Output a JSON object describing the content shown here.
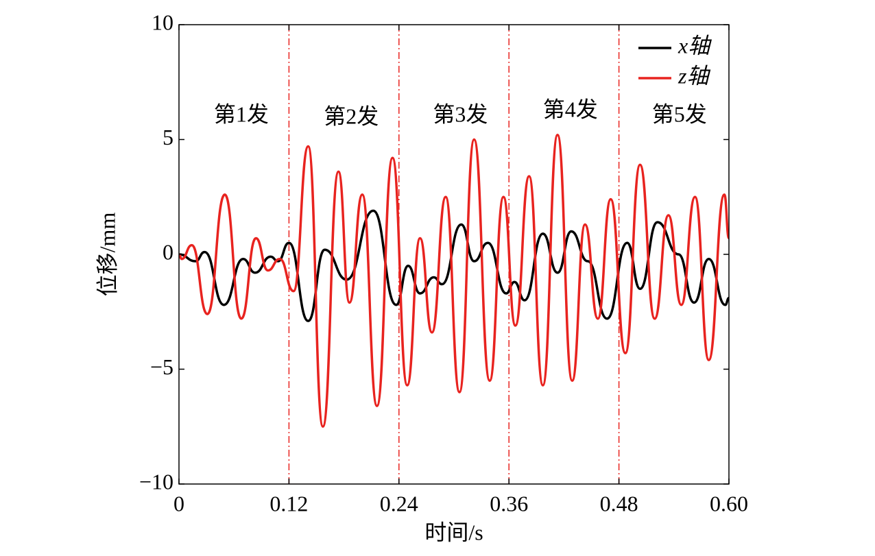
{
  "chart_data": {
    "type": "line",
    "xlabel": "时间/s",
    "ylabel": "位移/mm",
    "xlim": [
      0,
      0.6
    ],
    "ylim": [
      -10,
      10
    ],
    "xticks": [
      0,
      0.12,
      0.24,
      0.36,
      0.48,
      {
        "value": 0.6,
        "label": "0.60"
      }
    ],
    "yticks": [
      {
        "value": -10,
        "label": "−10"
      },
      {
        "value": -5,
        "label": "−5"
      },
      0,
      5,
      10
    ],
    "legend": "upper right",
    "vlines": [
      0.12,
      0.24,
      0.36,
      0.48
    ],
    "vline_color": "#e8231f",
    "annotations": [
      {
        "text": "第1发",
        "x": 0.068,
        "y": 6.0
      },
      {
        "text": "第2发",
        "x": 0.188,
        "y": 5.9
      },
      {
        "text": "第3发",
        "x": 0.307,
        "y": 6.0
      },
      {
        "text": "第4发",
        "x": 0.427,
        "y": 6.2
      },
      {
        "text": "第5发",
        "x": 0.546,
        "y": 6.0
      }
    ],
    "series": [
      {
        "name": "x轴",
        "color": "#000000",
        "x": [
          0,
          0.018,
          0.028,
          0.049,
          0.07,
          0.083,
          0.1,
          0.108,
          0.12,
          0.141,
          0.159,
          0.183,
          0.212,
          0.237,
          0.25,
          0.263,
          0.278,
          0.287,
          0.308,
          0.322,
          0.337,
          0.357,
          0.366,
          0.377,
          0.397,
          0.413,
          0.428,
          0.446,
          0.467,
          0.489,
          0.503,
          0.522,
          0.545,
          0.562,
          0.578,
          0.596,
          0.6
        ],
        "values": [
          0,
          -0.3,
          0.1,
          -2.2,
          -0.2,
          -0.8,
          -0.1,
          -0.3,
          0.5,
          -2.9,
          0.2,
          -1.1,
          1.9,
          -2.2,
          -0.5,
          -1.7,
          -1.0,
          -1.3,
          1.3,
          -0.3,
          0.5,
          -1.7,
          -1.2,
          -2.0,
          0.9,
          -0.8,
          1.0,
          -0.3,
          -2.8,
          0.5,
          -1.5,
          1.4,
          0.0,
          -2.1,
          -0.2,
          -2.2,
          -1.9
        ]
      },
      {
        "name": "z轴",
        "color": "#e8231f",
        "x": [
          0,
          0.003,
          0.014,
          0.031,
          0.05,
          0.068,
          0.084,
          0.097,
          0.11,
          0.125,
          0.141,
          0.157,
          0.174,
          0.186,
          0.2,
          0.216,
          0.233,
          0.249,
          0.263,
          0.276,
          0.291,
          0.306,
          0.322,
          0.339,
          0.354,
          0.367,
          0.382,
          0.397,
          0.413,
          0.429,
          0.443,
          0.457,
          0.471,
          0.487,
          0.503,
          0.519,
          0.534,
          0.548,
          0.563,
          0.578,
          0.595,
          0.6
        ],
        "values": [
          0,
          -0.2,
          0.4,
          -2.6,
          2.6,
          -2.8,
          0.7,
          -0.7,
          -0.2,
          -1.6,
          4.7,
          -7.5,
          3.6,
          -2.1,
          2.6,
          -6.6,
          4.2,
          -5.7,
          0.7,
          -3.4,
          2.5,
          -6.0,
          5.0,
          -5.5,
          2.5,
          -3.1,
          3.4,
          -5.7,
          5.2,
          -5.5,
          1.3,
          -2.8,
          2.4,
          -4.3,
          3.9,
          -2.8,
          1.7,
          -2.2,
          2.5,
          -4.6,
          2.6,
          0.7
        ]
      }
    ]
  }
}
